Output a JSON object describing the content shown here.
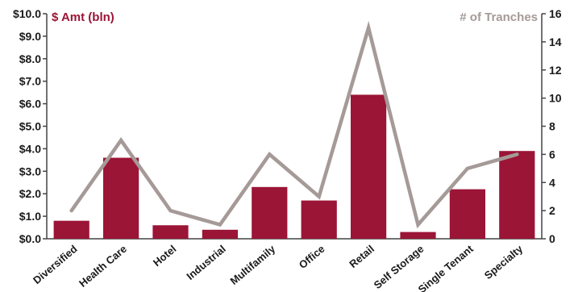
{
  "chart_data": {
    "type": "bar",
    "categories": [
      "Diversified",
      "Health Care",
      "Hotel",
      "Industrial",
      "Multifamily",
      "Office",
      "Retail",
      "Self Storage",
      "Single Tenant",
      "Specialty"
    ],
    "series": [
      {
        "name": "$ Amt (bln)",
        "type": "bar",
        "axis": "left",
        "color": "#9b1536",
        "values": [
          0.8,
          3.6,
          0.6,
          0.4,
          2.3,
          1.7,
          6.4,
          0.3,
          2.2,
          3.9
        ]
      },
      {
        "name": "# of Tranches",
        "type": "line",
        "axis": "right",
        "color": "#a59a97",
        "values": [
          2,
          7,
          2,
          1,
          6,
          3,
          15,
          1,
          5,
          6
        ]
      }
    ],
    "y_left": {
      "label": "$ Amt (bln)",
      "range": [
        0,
        10
      ],
      "ticks": [
        "$0.0",
        "$1.0",
        "$2.0",
        "$3.0",
        "$4.0",
        "$5.0",
        "$6.0",
        "$7.0",
        "$8.0",
        "$9.0",
        "$10.0"
      ]
    },
    "y_right": {
      "label": "# of Tranches",
      "range": [
        0,
        16
      ],
      "ticks": [
        "0",
        "2",
        "4",
        "6",
        "8",
        "10",
        "12",
        "14",
        "16"
      ]
    },
    "grid": false
  }
}
